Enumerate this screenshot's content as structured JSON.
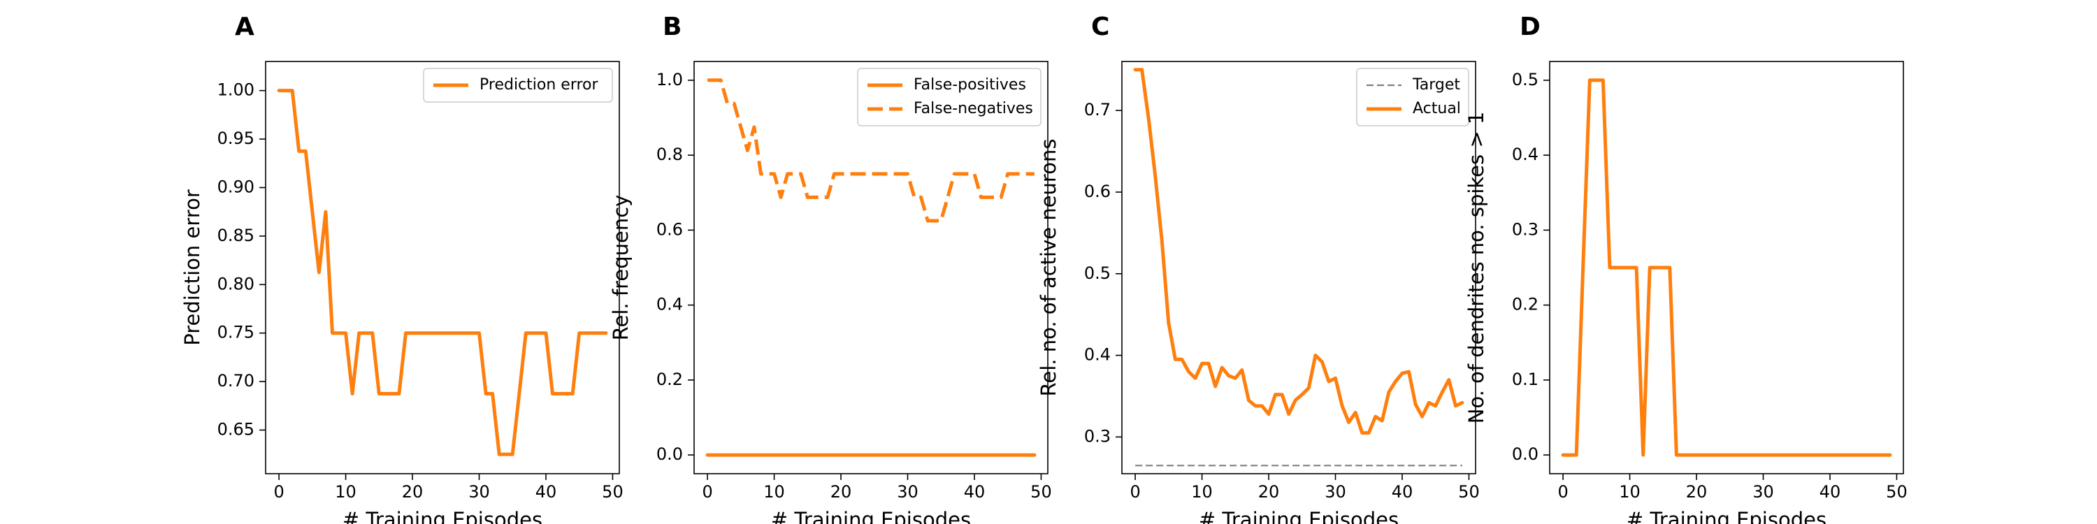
{
  "chart_data": [
    {
      "panel": "A",
      "type": "line",
      "xlabel": "# Training Episodes",
      "ylabel": "Prediction error",
      "xlim": [
        -2,
        51
      ],
      "ylim": [
        0.605,
        1.03
      ],
      "xticks": [
        0,
        10,
        20,
        30,
        40,
        50
      ],
      "yticks": [
        0.65,
        0.7,
        0.75,
        0.8,
        0.85,
        0.9,
        0.95,
        1.0
      ],
      "ytick_decimals": 2,
      "legend_position": "upper-right",
      "series": [
        {
          "name": "Prediction error",
          "color": "#ff7f0e",
          "style": "solid",
          "x": [
            0,
            1,
            2,
            3,
            4,
            5,
            6,
            7,
            8,
            9,
            10,
            11,
            12,
            13,
            14,
            15,
            16,
            17,
            18,
            19,
            20,
            21,
            22,
            23,
            24,
            25,
            26,
            27,
            28,
            29,
            30,
            31,
            32,
            33,
            34,
            35,
            36,
            37,
            38,
            39,
            40,
            41,
            42,
            43,
            44,
            45,
            46,
            47,
            48,
            49
          ],
          "y": [
            1.0,
            1.0,
            1.0,
            0.9375,
            0.9375,
            0.875,
            0.8125,
            0.875,
            0.75,
            0.75,
            0.75,
            0.6875,
            0.75,
            0.75,
            0.75,
            0.6875,
            0.6875,
            0.6875,
            0.6875,
            0.75,
            0.75,
            0.75,
            0.75,
            0.75,
            0.75,
            0.75,
            0.75,
            0.75,
            0.75,
            0.75,
            0.75,
            0.6875,
            0.6875,
            0.625,
            0.625,
            0.625,
            0.6875,
            0.75,
            0.75,
            0.75,
            0.75,
            0.6875,
            0.6875,
            0.6875,
            0.6875,
            0.75,
            0.75,
            0.75,
            0.75,
            0.75
          ]
        }
      ]
    },
    {
      "panel": "B",
      "type": "line",
      "xlabel": "# Training Episodes",
      "ylabel": "Rel. frequency",
      "xlim": [
        -2,
        51
      ],
      "ylim": [
        -0.05,
        1.05
      ],
      "xticks": [
        0,
        10,
        20,
        30,
        40,
        50
      ],
      "yticks": [
        0.0,
        0.2,
        0.4,
        0.6,
        0.8,
        1.0
      ],
      "ytick_decimals": 1,
      "legend_position": "upper-right",
      "series": [
        {
          "name": "False-positives",
          "color": "#ff7f0e",
          "style": "solid",
          "x": [
            0,
            1,
            2,
            3,
            4,
            5,
            6,
            7,
            8,
            9,
            10,
            11,
            12,
            13,
            14,
            15,
            16,
            17,
            18,
            19,
            20,
            21,
            22,
            23,
            24,
            25,
            26,
            27,
            28,
            29,
            30,
            31,
            32,
            33,
            34,
            35,
            36,
            37,
            38,
            39,
            40,
            41,
            42,
            43,
            44,
            45,
            46,
            47,
            48,
            49
          ],
          "y": [
            0,
            0,
            0,
            0,
            0,
            0,
            0,
            0,
            0,
            0,
            0,
            0,
            0,
            0,
            0,
            0,
            0,
            0,
            0,
            0,
            0,
            0,
            0,
            0,
            0,
            0,
            0,
            0,
            0,
            0,
            0,
            0,
            0,
            0,
            0,
            0,
            0,
            0,
            0,
            0,
            0,
            0,
            0,
            0,
            0,
            0,
            0,
            0,
            0,
            0
          ]
        },
        {
          "name": "False-negatives",
          "color": "#ff7f0e",
          "style": "dashed",
          "x": [
            0,
            1,
            2,
            3,
            4,
            5,
            6,
            7,
            8,
            9,
            10,
            11,
            12,
            13,
            14,
            15,
            16,
            17,
            18,
            19,
            20,
            21,
            22,
            23,
            24,
            25,
            26,
            27,
            28,
            29,
            30,
            31,
            32,
            33,
            34,
            35,
            36,
            37,
            38,
            39,
            40,
            41,
            42,
            43,
            44,
            45,
            46,
            47,
            48,
            49
          ],
          "y": [
            1.0,
            1.0,
            1.0,
            0.9375,
            0.9375,
            0.875,
            0.8125,
            0.875,
            0.75,
            0.75,
            0.75,
            0.6875,
            0.75,
            0.75,
            0.75,
            0.6875,
            0.6875,
            0.6875,
            0.6875,
            0.75,
            0.75,
            0.75,
            0.75,
            0.75,
            0.75,
            0.75,
            0.75,
            0.75,
            0.75,
            0.75,
            0.75,
            0.6875,
            0.6875,
            0.625,
            0.625,
            0.625,
            0.6875,
            0.75,
            0.75,
            0.75,
            0.75,
            0.6875,
            0.6875,
            0.6875,
            0.6875,
            0.75,
            0.75,
            0.75,
            0.75,
            0.75
          ]
        }
      ]
    },
    {
      "panel": "C",
      "type": "line",
      "xlabel": "# Training Episodes",
      "ylabel": "Rel. no. of active neurons",
      "xlim": [
        -2,
        51
      ],
      "ylim": [
        0.255,
        0.76
      ],
      "xticks": [
        0,
        10,
        20,
        30,
        40,
        50
      ],
      "yticks": [
        0.3,
        0.4,
        0.5,
        0.6,
        0.7
      ],
      "ytick_decimals": 1,
      "legend_position": "upper-right",
      "series": [
        {
          "name": "Target",
          "color": "#7f7f7f",
          "style": "dashed-thin",
          "x": [
            0,
            49
          ],
          "y": [
            0.265,
            0.265
          ]
        },
        {
          "name": "Actual",
          "color": "#ff7f0e",
          "style": "solid",
          "x": [
            0,
            1,
            2,
            3,
            4,
            5,
            6,
            7,
            8,
            9,
            10,
            11,
            12,
            13,
            14,
            15,
            16,
            17,
            18,
            19,
            20,
            21,
            22,
            23,
            24,
            25,
            26,
            27,
            28,
            29,
            30,
            31,
            32,
            33,
            34,
            35,
            36,
            37,
            38,
            39,
            40,
            41,
            42,
            43,
            44,
            45,
            46,
            47,
            48,
            49
          ],
          "y": [
            0.75,
            0.75,
            0.69,
            0.62,
            0.54,
            0.44,
            0.395,
            0.395,
            0.38,
            0.372,
            0.39,
            0.39,
            0.362,
            0.385,
            0.375,
            0.372,
            0.382,
            0.345,
            0.338,
            0.338,
            0.328,
            0.352,
            0.352,
            0.328,
            0.345,
            0.352,
            0.36,
            0.4,
            0.392,
            0.368,
            0.372,
            0.338,
            0.318,
            0.33,
            0.305,
            0.305,
            0.325,
            0.32,
            0.355,
            0.368,
            0.378,
            0.38,
            0.34,
            0.325,
            0.342,
            0.338,
            0.355,
            0.37,
            0.338,
            0.342
          ]
        }
      ]
    },
    {
      "panel": "D",
      "type": "line",
      "xlabel": "# Training Episodes",
      "ylabel": "No. of dendrites no. spikes > 1",
      "xlim": [
        -2,
        51
      ],
      "ylim": [
        -0.025,
        0.525
      ],
      "xticks": [
        0,
        10,
        20,
        30,
        40,
        50
      ],
      "yticks": [
        0.0,
        0.1,
        0.2,
        0.3,
        0.4,
        0.5
      ],
      "ytick_decimals": 1,
      "legend_position": "none",
      "series": [
        {
          "name": "",
          "color": "#ff7f0e",
          "style": "solid",
          "x": [
            0,
            1,
            2,
            3,
            4,
            5,
            6,
            7,
            8,
            9,
            10,
            11,
            12,
            13,
            14,
            15,
            16,
            17,
            18,
            19,
            20,
            21,
            22,
            23,
            24,
            25,
            26,
            27,
            28,
            29,
            30,
            31,
            32,
            33,
            34,
            35,
            36,
            37,
            38,
            39,
            40,
            41,
            42,
            43,
            44,
            45,
            46,
            47,
            48,
            49
          ],
          "y": [
            0,
            0,
            0,
            0.25,
            0.5,
            0.5,
            0.5,
            0.25,
            0.25,
            0.25,
            0.25,
            0.25,
            0,
            0.25,
            0.25,
            0.25,
            0.25,
            0,
            0,
            0,
            0,
            0,
            0,
            0,
            0,
            0,
            0,
            0,
            0,
            0,
            0,
            0,
            0,
            0,
            0,
            0,
            0,
            0,
            0,
            0,
            0,
            0,
            0,
            0,
            0,
            0,
            0,
            0,
            0,
            0
          ]
        }
      ]
    }
  ]
}
